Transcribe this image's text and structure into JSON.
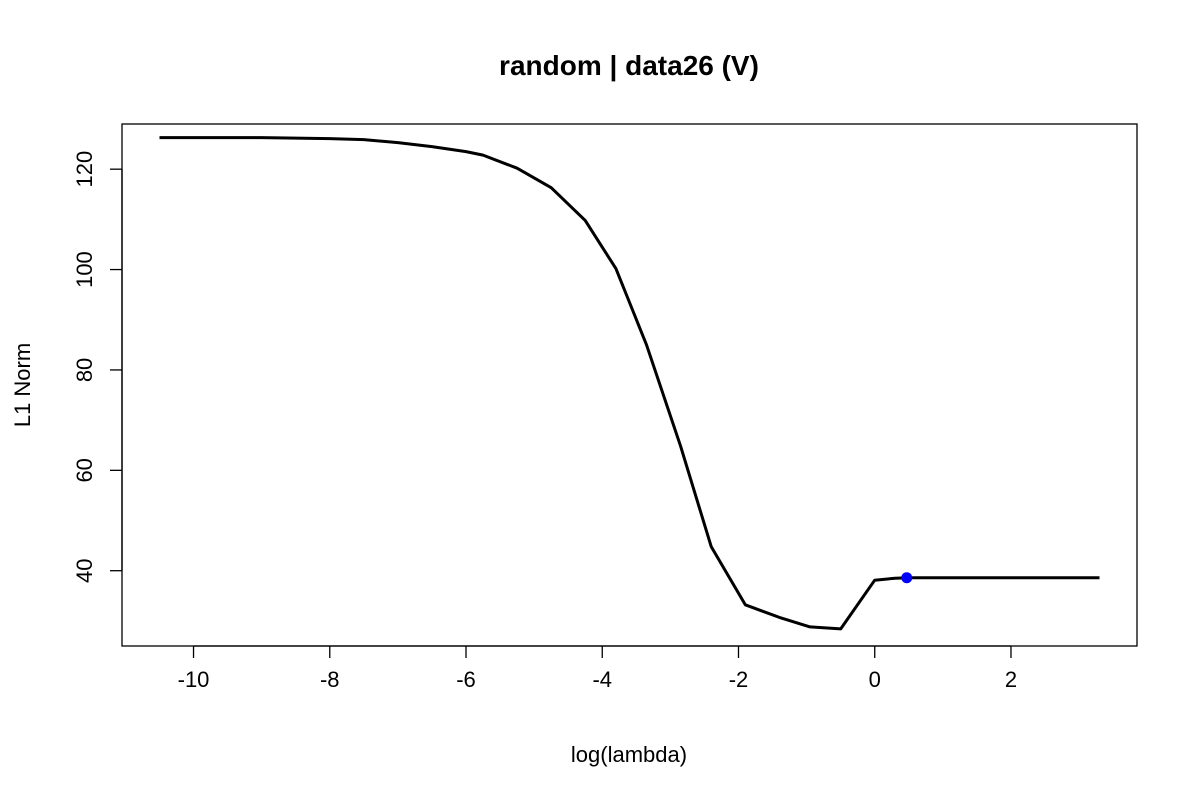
{
  "chart_data": {
    "type": "line",
    "title": "random | data26 (V)",
    "xlabel": "log(lambda)",
    "ylabel": "L1 Norm",
    "xlim": [
      -11.05,
      3.85
    ],
    "ylim": [
      25,
      129
    ],
    "x_ticks": [
      -10,
      -8,
      -6,
      -4,
      -2,
      0,
      2
    ],
    "x_tick_labels": [
      "-10",
      "-8",
      "-6",
      "-4",
      "-2",
      "0",
      "2"
    ],
    "y_ticks": [
      40,
      60,
      80,
      100,
      120
    ],
    "y_tick_labels": [
      "40",
      "60",
      "80",
      "100",
      "120"
    ],
    "grid": false,
    "series": [
      {
        "color": "#000000",
        "x": [
          -10.5,
          -9.0,
          -8.0,
          -7.5,
          -7.0,
          -6.5,
          -6.0,
          -5.75,
          -5.25,
          -4.75,
          -4.25,
          -3.8,
          -3.35,
          -2.85,
          -2.4,
          -1.9,
          -1.4,
          -0.95,
          -0.5,
          0.0,
          0.3,
          0.5,
          1.0,
          2.0,
          3.3
        ],
        "y": [
          126.3,
          126.3,
          126.1,
          125.9,
          125.3,
          124.5,
          123.5,
          122.8,
          120.2,
          116.3,
          109.8,
          100.2,
          85.0,
          64.8,
          44.8,
          33.2,
          30.7,
          28.8,
          28.4,
          38.1,
          38.5,
          38.6,
          38.6,
          38.6,
          38.6
        ]
      }
    ],
    "highlight_point": {
      "x": 0.47,
      "y": 38.6,
      "color": "#0000ff"
    }
  }
}
